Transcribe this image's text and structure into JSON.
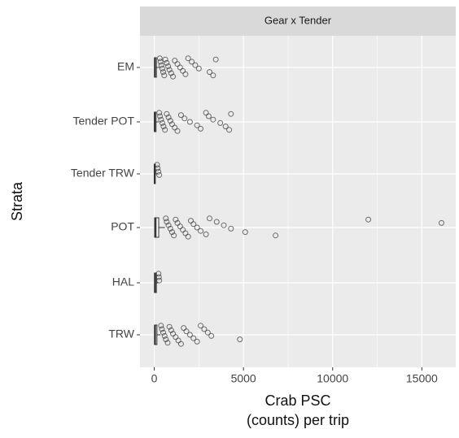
{
  "chart_data": {
    "type": "boxplot",
    "title": "Gear x Tender",
    "x_label": [
      "Crab PSC",
      "(counts) per trip"
    ],
    "y_label": "Strata",
    "categories": [
      "EM",
      "Tender POT",
      "Tender TRW",
      "POT",
      "HAL",
      "TRW"
    ],
    "boxes": [
      {
        "low": 0,
        "q1": 10,
        "median": 40,
        "q3": 120,
        "high": 290,
        "outliers": [
          310,
          350,
          400,
          450,
          500,
          560,
          620,
          700,
          780,
          850,
          950,
          1050,
          1150,
          1300,
          1450,
          1600,
          1750,
          1900,
          2100,
          2300,
          2500,
          3100,
          3300,
          3450
        ]
      },
      {
        "low": 0,
        "q1": 5,
        "median": 30,
        "q3": 100,
        "high": 250,
        "outliers": [
          280,
          320,
          380,
          450,
          520,
          600,
          700,
          800,
          900,
          1000,
          1150,
          1300,
          1500,
          1700,
          2000,
          2400,
          2600,
          2900,
          3050,
          3300,
          3700,
          4000,
          4200,
          4300
        ]
      },
      {
        "low": 0,
        "q1": 5,
        "median": 20,
        "q3": 60,
        "high": 140,
        "outliers": [
          160,
          190,
          230,
          280
        ]
      },
      {
        "low": 0,
        "q1": 20,
        "median": 80,
        "q3": 250,
        "high": 600,
        "outliers": [
          650,
          700,
          800,
          900,
          1000,
          1100,
          1200,
          1300,
          1450,
          1600,
          1750,
          1900,
          2050,
          2200,
          2400,
          2600,
          2900,
          3100,
          3500,
          3900,
          4300,
          5100,
          6800,
          12000,
          16100
        ]
      },
      {
        "low": 0,
        "q1": 10,
        "median": 50,
        "q3": 120,
        "high": 220,
        "outliers": [
          240,
          260,
          280
        ]
      },
      {
        "low": 0,
        "q1": 10,
        "median": 50,
        "q3": 150,
        "high": 350,
        "outliers": [
          380,
          430,
          500,
          580,
          650,
          750,
          850,
          950,
          1050,
          1200,
          1350,
          1500,
          1650,
          1800,
          2000,
          2200,
          2400,
          2600,
          2800,
          3000,
          3200,
          4800
        ]
      }
    ],
    "xlim": [
      -800,
      16900
    ],
    "xticks": [
      0,
      5000,
      10000,
      15000
    ],
    "xminor": [
      2500,
      7500,
      12500
    ],
    "grid": true,
    "panel_color": "#ebebeb",
    "strip_color": "#d9d9d9",
    "box_color": "#333333"
  }
}
